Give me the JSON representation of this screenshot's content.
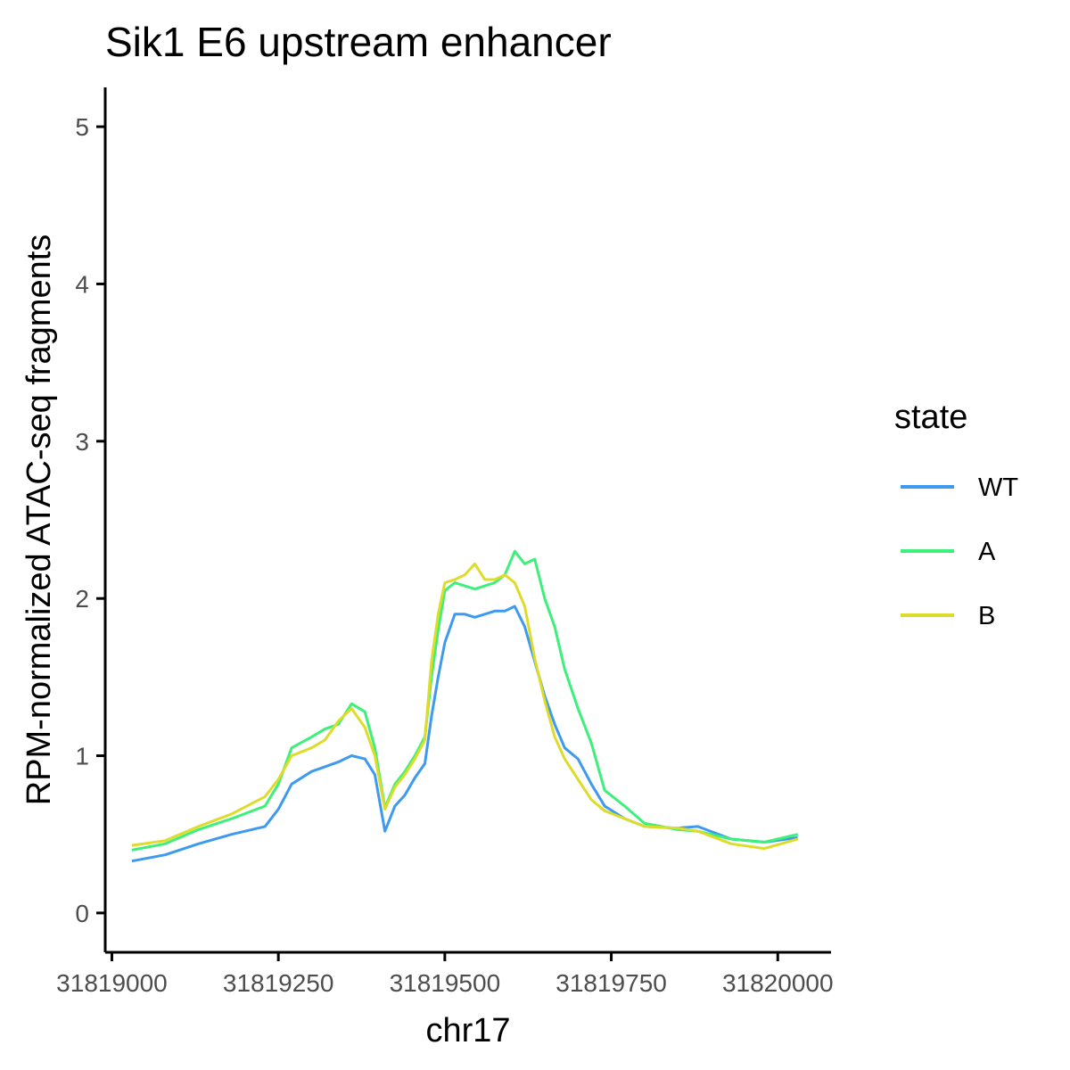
{
  "chart_data": {
    "type": "line",
    "title": "Sik1 E6 upstream enhancer",
    "xlabel": "chr17",
    "ylabel": "RPM-normalized ATAC-seq fragments",
    "xlim": [
      31818990,
      31820080
    ],
    "ylim": [
      -0.25,
      5.25
    ],
    "x_ticks": [
      31819000,
      31819250,
      31819500,
      31819750,
      31820000
    ],
    "y_ticks": [
      0,
      1,
      2,
      3,
      4,
      5
    ],
    "x_tick_labels": [
      "31819000",
      "31819250",
      "31819500",
      "31819750",
      "31820000"
    ],
    "y_tick_labels": [
      "0",
      "1",
      "2",
      "3",
      "4",
      "5"
    ],
    "grid": false,
    "legend": {
      "title": "state",
      "position": "right"
    },
    "series": [
      {
        "name": "WT",
        "color": "#3D9AF0",
        "x": [
          31819030,
          31819080,
          31819130,
          31819180,
          31819230,
          31819250,
          31819270,
          31819300,
          31819320,
          31819340,
          31819360,
          31819380,
          31819395,
          31819410,
          31819425,
          31819440,
          31819455,
          31819470,
          31819480,
          31819490,
          31819500,
          31819515,
          31819530,
          31819545,
          31819560,
          31819575,
          31819590,
          31819605,
          31819620,
          31819635,
          31819650,
          31819665,
          31819680,
          31819700,
          31819720,
          31819740,
          31819770,
          31819800,
          31819850,
          31819880,
          31819930,
          31819980,
          31820030
        ],
        "y": [
          0.33,
          0.37,
          0.44,
          0.5,
          0.55,
          0.66,
          0.82,
          0.9,
          0.93,
          0.96,
          1.0,
          0.98,
          0.88,
          0.52,
          0.68,
          0.75,
          0.86,
          0.95,
          1.25,
          1.5,
          1.72,
          1.9,
          1.9,
          1.88,
          1.9,
          1.92,
          1.92,
          1.95,
          1.82,
          1.6,
          1.38,
          1.2,
          1.05,
          0.98,
          0.82,
          0.68,
          0.6,
          0.55,
          0.54,
          0.55,
          0.47,
          0.45,
          0.48
        ]
      },
      {
        "name": "A",
        "color": "#3DF07A",
        "x": [
          31819030,
          31819080,
          31819130,
          31819180,
          31819230,
          31819250,
          31819270,
          31819300,
          31819320,
          31819340,
          31819360,
          31819380,
          31819395,
          31819410,
          31819425,
          31819440,
          31819455,
          31819470,
          31819480,
          31819490,
          31819500,
          31819515,
          31819530,
          31819545,
          31819560,
          31819575,
          31819590,
          31819605,
          31819620,
          31819635,
          31819650,
          31819665,
          31819680,
          31819700,
          31819720,
          31819740,
          31819770,
          31819800,
          31819850,
          31819880,
          31819930,
          31819980,
          31820030
        ],
        "y": [
          0.4,
          0.44,
          0.53,
          0.6,
          0.68,
          0.82,
          1.05,
          1.12,
          1.17,
          1.2,
          1.33,
          1.28,
          1.05,
          0.67,
          0.82,
          0.9,
          1.0,
          1.12,
          1.5,
          1.8,
          2.05,
          2.1,
          2.08,
          2.06,
          2.08,
          2.1,
          2.15,
          2.3,
          2.22,
          2.25,
          2.0,
          1.82,
          1.55,
          1.3,
          1.08,
          0.78,
          0.68,
          0.57,
          0.53,
          0.52,
          0.47,
          0.45,
          0.5
        ]
      },
      {
        "name": "B",
        "color": "#DEDC2A",
        "x": [
          31819030,
          31819080,
          31819130,
          31819180,
          31819230,
          31819250,
          31819270,
          31819300,
          31819320,
          31819340,
          31819360,
          31819380,
          31819395,
          31819410,
          31819425,
          31819440,
          31819455,
          31819470,
          31819480,
          31819490,
          31819500,
          31819515,
          31819530,
          31819545,
          31819560,
          31819575,
          31819590,
          31819605,
          31819620,
          31819635,
          31819650,
          31819665,
          31819680,
          31819700,
          31819720,
          31819740,
          31819770,
          31819800,
          31819850,
          31819880,
          31819930,
          31819980,
          31820030
        ],
        "y": [
          0.43,
          0.46,
          0.55,
          0.63,
          0.74,
          0.85,
          1.0,
          1.05,
          1.1,
          1.22,
          1.3,
          1.18,
          1.0,
          0.66,
          0.8,
          0.88,
          0.98,
          1.1,
          1.6,
          1.9,
          2.1,
          2.12,
          2.15,
          2.22,
          2.12,
          2.12,
          2.15,
          2.1,
          1.95,
          1.62,
          1.35,
          1.12,
          0.98,
          0.85,
          0.72,
          0.65,
          0.6,
          0.55,
          0.54,
          0.52,
          0.44,
          0.41,
          0.47
        ]
      }
    ]
  }
}
